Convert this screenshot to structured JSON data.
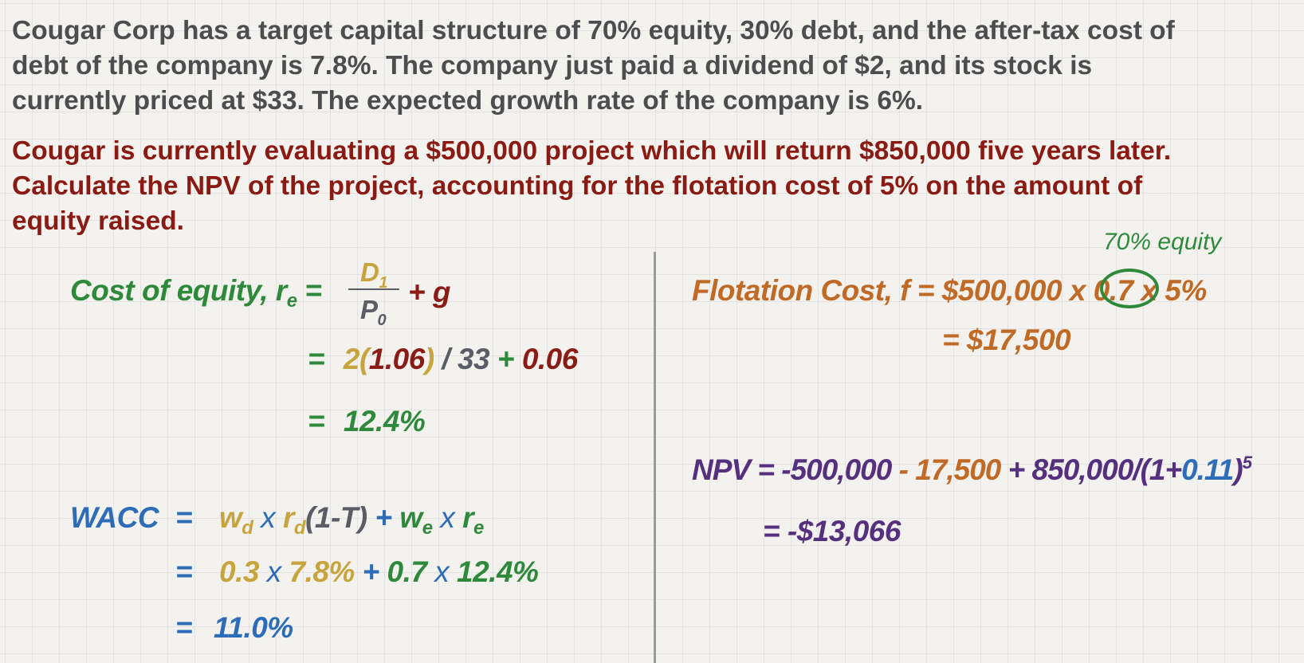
{
  "problem": {
    "intro_lines": [
      "Cougar Corp has a target capital structure of 70% equity, 30% debt, and the after-tax cost of",
      "debt of the company is 7.8%.  The company just paid a dividend of $2, and its stock is",
      "currently priced at $33.  The expected growth rate of the company is 6%."
    ],
    "task_lines": [
      "Cougar is currently evaluating a $500,000 project which will return $850,000 five years later.",
      "Calculate the NPV of the project, accounting for the flotation cost of 5% on the amount of",
      "equity raised."
    ]
  },
  "cost_of_equity": {
    "label": "Cost of equity, r",
    "label_sub": "e",
    "eq": "=",
    "numerator": "D",
    "numerator_sub": "1",
    "denominator": "P",
    "denominator_sub": "0",
    "plus_g": "+ g",
    "step1": {
      "eq": "=",
      "d0": "2",
      "open": "(",
      "growth": "1.06",
      "close": ")",
      "div": " / ",
      "price": "33",
      "plus": " + ",
      "g": "0.06"
    },
    "result": {
      "eq": "=",
      "value": "12.4%"
    }
  },
  "wacc": {
    "label": "WACC",
    "eq": "=",
    "w": "w",
    "d_sub": "d",
    "e_sub": "e",
    "times": " x ",
    "r": "r",
    "tax": "(1-T)",
    "plus": " + ",
    "step1": {
      "eq": "=",
      "wd": "0.3",
      "times": " x ",
      "rd": "7.8%",
      "plus": " + ",
      "we": "0.7",
      "times2": " x ",
      "re": "12.4%"
    },
    "result": {
      "eq": "=",
      "value": "11.0%"
    }
  },
  "flotation": {
    "annotation": "70% equity",
    "label": "Flotation Cost, f = $500,000 x",
    "equity_weight": "0.7",
    "rate_part": "x 5%",
    "result": "= $17,500"
  },
  "npv": {
    "label": "NPV = -500,000",
    "minus_flotation": " - 17,500",
    "plus_pv": " + 850,000/(1+",
    "rate": "0.11",
    "close": ")",
    "exponent": "5",
    "result": "= -$13,066"
  },
  "colors": {
    "intro": "#4d4d4f",
    "task": "#8a1a12",
    "green": "#2e8a3a",
    "orange": "#c06a26",
    "gold": "#c8a43e",
    "blue": "#2d6db8",
    "purple": "#55307e",
    "maroon": "#8b1c15"
  }
}
